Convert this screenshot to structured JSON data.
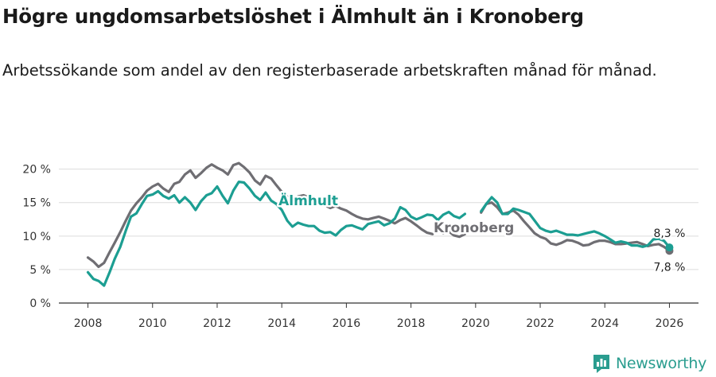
{
  "title": "Högre ungdomsarbetslöshet i Älmhult än i Kronoberg",
  "subtitle": "Arbetssökande som andel av den registerbaserade arbetskraften månad för månad.",
  "brand": {
    "name": "Newsworthy",
    "color": "#2a9d8f"
  },
  "chart_data": {
    "type": "line",
    "title": "Högre ungdomsarbetslöshet i Älmhult än i Kronoberg",
    "subtitle": "Arbetssökande som andel av den registerbaserade arbetskraften månad för månad.",
    "xlabel": "",
    "ylabel": "",
    "xlim": [
      2007.1,
      2026.9
    ],
    "ylim": [
      0,
      21.5
    ],
    "x_ticks": [
      2008,
      2010,
      2012,
      2014,
      2016,
      2018,
      2020,
      2022,
      2024,
      2026
    ],
    "x_tick_labels": [
      "2008",
      "2010",
      "2012",
      "2014",
      "2016",
      "2018",
      "2020",
      "2022",
      "2024",
      "2026"
    ],
    "y_ticks": [
      0,
      5,
      10,
      15,
      20
    ],
    "y_tick_labels": [
      "0 %",
      "5 %",
      "10 %",
      "15 %",
      "20 %"
    ],
    "grid": true,
    "legend": "inline labels",
    "end_labels": {
      "almhult": "8,3 %",
      "kronoberg": "7,8 %"
    },
    "series": [
      {
        "name": "Kronoberg",
        "color": "#6f6e73",
        "points": [
          [
            2008.0,
            6.8
          ],
          [
            2008.17,
            6.2
          ],
          [
            2008.33,
            5.4
          ],
          [
            2008.5,
            6.0
          ],
          [
            2008.67,
            7.6
          ],
          [
            2008.83,
            9.0
          ],
          [
            2009.0,
            10.6
          ],
          [
            2009.17,
            12.3
          ],
          [
            2009.33,
            13.8
          ],
          [
            2009.5,
            14.9
          ],
          [
            2009.67,
            15.8
          ],
          [
            2009.83,
            16.8
          ],
          [
            2010.0,
            17.4
          ],
          [
            2010.17,
            17.8
          ],
          [
            2010.33,
            17.1
          ],
          [
            2010.5,
            16.6
          ],
          [
            2010.67,
            17.8
          ],
          [
            2010.83,
            18.1
          ],
          [
            2011.0,
            19.2
          ],
          [
            2011.17,
            19.8
          ],
          [
            2011.33,
            18.7
          ],
          [
            2011.5,
            19.4
          ],
          [
            2011.67,
            20.2
          ],
          [
            2011.83,
            20.7
          ],
          [
            2012.0,
            20.2
          ],
          [
            2012.17,
            19.8
          ],
          [
            2012.33,
            19.2
          ],
          [
            2012.5,
            20.6
          ],
          [
            2012.67,
            20.9
          ],
          [
            2012.83,
            20.3
          ],
          [
            2013.0,
            19.5
          ],
          [
            2013.17,
            18.3
          ],
          [
            2013.33,
            17.7
          ],
          [
            2013.5,
            19.0
          ],
          [
            2013.67,
            18.6
          ],
          [
            2013.83,
            17.6
          ],
          [
            2014.0,
            16.6
          ],
          [
            2014.17,
            15.9
          ],
          [
            2014.5,
            15.9
          ],
          [
            2014.67,
            16.1
          ],
          [
            2014.83,
            15.8
          ],
          [
            2015.0,
            15.6
          ],
          [
            2015.33,
            14.6
          ],
          [
            2015.5,
            14.2
          ],
          [
            2015.67,
            14.5
          ],
          [
            2015.83,
            14.1
          ],
          [
            2016.0,
            13.8
          ],
          [
            2016.17,
            13.3
          ],
          [
            2016.33,
            12.9
          ],
          [
            2016.5,
            12.6
          ],
          [
            2016.67,
            12.5
          ],
          [
            2016.83,
            12.7
          ],
          [
            2017.0,
            12.9
          ],
          [
            2017.17,
            12.6
          ],
          [
            2017.33,
            12.3
          ],
          [
            2017.5,
            11.9
          ],
          [
            2017.67,
            12.4
          ],
          [
            2017.83,
            12.7
          ],
          [
            2018.0,
            12.2
          ],
          [
            2018.17,
            11.6
          ],
          [
            2018.33,
            11.0
          ],
          [
            2018.5,
            10.5
          ],
          [
            2018.67,
            10.3
          ],
          [
            2019.0,
            10.4
          ],
          [
            2019.17,
            10.7
          ],
          [
            2019.33,
            10.1
          ],
          [
            2019.5,
            9.9
          ],
          [
            2019.67,
            10.3
          ],
          [
            2020.17,
            13.5
          ],
          [
            2020.33,
            14.8
          ],
          [
            2020.5,
            15.0
          ],
          [
            2020.67,
            14.3
          ],
          [
            2020.83,
            13.3
          ],
          [
            2021.0,
            13.5
          ],
          [
            2021.17,
            13.8
          ],
          [
            2021.33,
            13.2
          ],
          [
            2021.5,
            12.2
          ],
          [
            2021.67,
            11.3
          ],
          [
            2021.83,
            10.4
          ],
          [
            2022.0,
            9.9
          ],
          [
            2022.17,
            9.6
          ],
          [
            2022.33,
            8.9
          ],
          [
            2022.5,
            8.7
          ],
          [
            2022.67,
            9.0
          ],
          [
            2022.83,
            9.4
          ],
          [
            2023.0,
            9.3
          ],
          [
            2023.17,
            9.0
          ],
          [
            2023.33,
            8.6
          ],
          [
            2023.5,
            8.7
          ],
          [
            2023.67,
            9.1
          ],
          [
            2023.83,
            9.3
          ],
          [
            2024.0,
            9.3
          ],
          [
            2024.17,
            9.1
          ],
          [
            2024.33,
            8.8
          ],
          [
            2024.5,
            8.8
          ],
          [
            2024.67,
            8.9
          ],
          [
            2024.83,
            9.0
          ],
          [
            2025.0,
            9.1
          ],
          [
            2025.17,
            8.8
          ],
          [
            2025.33,
            8.5
          ],
          [
            2025.5,
            8.7
          ],
          [
            2025.67,
            8.8
          ],
          [
            2025.83,
            8.4
          ],
          [
            2026.0,
            7.8
          ]
        ]
      },
      {
        "name": "Älmhult",
        "color": "#1c9e92",
        "points": [
          [
            2008.0,
            4.6
          ],
          [
            2008.17,
            3.6
          ],
          [
            2008.33,
            3.3
          ],
          [
            2008.5,
            2.6
          ],
          [
            2008.67,
            4.6
          ],
          [
            2008.83,
            6.6
          ],
          [
            2009.0,
            8.4
          ],
          [
            2009.17,
            10.8
          ],
          [
            2009.33,
            12.9
          ],
          [
            2009.5,
            13.4
          ],
          [
            2009.67,
            14.8
          ],
          [
            2009.83,
            16.0
          ],
          [
            2010.0,
            16.2
          ],
          [
            2010.17,
            16.7
          ],
          [
            2010.33,
            16.0
          ],
          [
            2010.5,
            15.6
          ],
          [
            2010.67,
            16.1
          ],
          [
            2010.83,
            15.0
          ],
          [
            2011.0,
            15.8
          ],
          [
            2011.17,
            15.0
          ],
          [
            2011.33,
            13.9
          ],
          [
            2011.5,
            15.2
          ],
          [
            2011.67,
            16.1
          ],
          [
            2011.83,
            16.4
          ],
          [
            2012.0,
            17.4
          ],
          [
            2012.17,
            16.0
          ],
          [
            2012.33,
            14.9
          ],
          [
            2012.5,
            16.8
          ],
          [
            2012.67,
            18.1
          ],
          [
            2012.83,
            18.0
          ],
          [
            2013.0,
            17.1
          ],
          [
            2013.17,
            16.0
          ],
          [
            2013.33,
            15.4
          ],
          [
            2013.5,
            16.5
          ],
          [
            2013.67,
            15.3
          ],
          [
            2013.83,
            14.8
          ],
          [
            2014.0,
            13.9
          ],
          [
            2014.17,
            12.3
          ],
          [
            2014.33,
            11.4
          ],
          [
            2014.5,
            12.0
          ],
          [
            2014.67,
            11.7
          ],
          [
            2014.83,
            11.5
          ],
          [
            2015.0,
            11.5
          ],
          [
            2015.17,
            10.8
          ],
          [
            2015.33,
            10.5
          ],
          [
            2015.5,
            10.6
          ],
          [
            2015.67,
            10.1
          ],
          [
            2015.83,
            10.9
          ],
          [
            2016.0,
            11.5
          ],
          [
            2016.17,
            11.6
          ],
          [
            2016.33,
            11.3
          ],
          [
            2016.5,
            11.0
          ],
          [
            2016.67,
            11.8
          ],
          [
            2016.83,
            12.0
          ],
          [
            2017.0,
            12.2
          ],
          [
            2017.17,
            11.6
          ],
          [
            2017.33,
            11.9
          ],
          [
            2017.5,
            12.6
          ],
          [
            2017.67,
            14.3
          ],
          [
            2017.83,
            13.9
          ],
          [
            2018.0,
            12.9
          ],
          [
            2018.17,
            12.5
          ],
          [
            2018.33,
            12.8
          ],
          [
            2018.5,
            13.2
          ],
          [
            2018.67,
            13.1
          ],
          [
            2018.83,
            12.4
          ],
          [
            2019.0,
            13.2
          ],
          [
            2019.17,
            13.6
          ],
          [
            2019.33,
            13.0
          ],
          [
            2019.5,
            12.7
          ],
          [
            2019.67,
            13.3
          ],
          [
            2020.17,
            13.7
          ],
          [
            2020.33,
            14.8
          ],
          [
            2020.5,
            15.8
          ],
          [
            2020.67,
            15.0
          ],
          [
            2020.83,
            13.3
          ],
          [
            2021.0,
            13.3
          ],
          [
            2021.17,
            14.1
          ],
          [
            2021.33,
            13.9
          ],
          [
            2021.5,
            13.6
          ],
          [
            2021.67,
            13.3
          ],
          [
            2021.83,
            12.3
          ],
          [
            2022.0,
            11.2
          ],
          [
            2022.17,
            10.8
          ],
          [
            2022.33,
            10.6
          ],
          [
            2022.5,
            10.8
          ],
          [
            2022.67,
            10.5
          ],
          [
            2022.83,
            10.2
          ],
          [
            2023.0,
            10.2
          ],
          [
            2023.17,
            10.1
          ],
          [
            2023.33,
            10.3
          ],
          [
            2023.5,
            10.5
          ],
          [
            2023.67,
            10.7
          ],
          [
            2023.83,
            10.4
          ],
          [
            2024.0,
            10.0
          ],
          [
            2024.17,
            9.5
          ],
          [
            2024.33,
            9.0
          ],
          [
            2024.5,
            9.2
          ],
          [
            2024.67,
            9.0
          ],
          [
            2024.83,
            8.6
          ],
          [
            2025.0,
            8.6
          ],
          [
            2025.17,
            8.4
          ],
          [
            2025.33,
            8.6
          ],
          [
            2025.5,
            9.5
          ],
          [
            2025.67,
            9.6
          ],
          [
            2025.83,
            9.3
          ],
          [
            2026.0,
            8.3
          ]
        ]
      }
    ]
  }
}
